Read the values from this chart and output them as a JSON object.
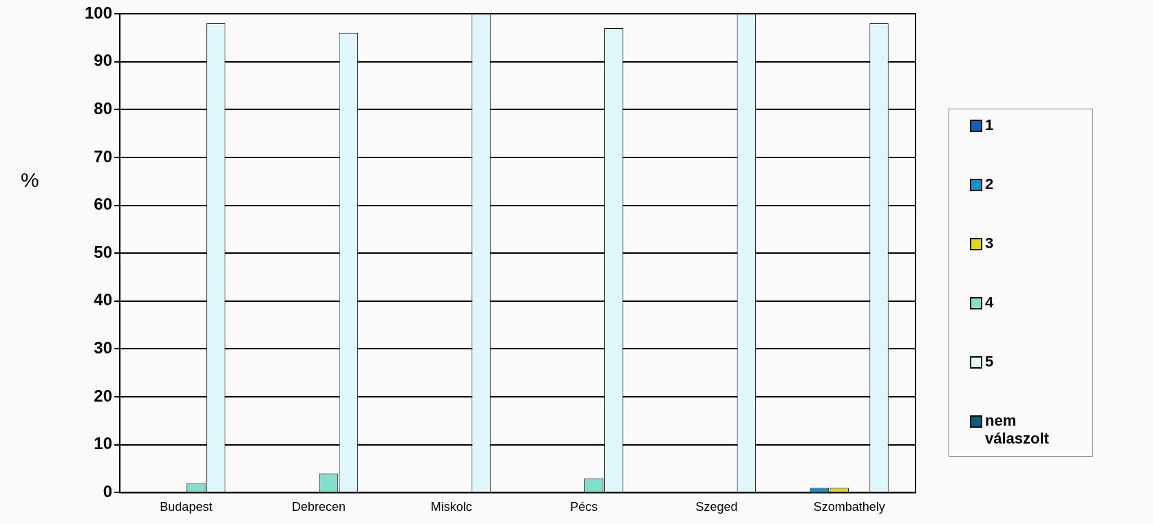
{
  "chart_data": {
    "type": "bar",
    "ylabel": "%",
    "categories": [
      "Budapest",
      "Debrecen",
      "Miskolc",
      "Pécs",
      "Szeged",
      "Szombathely"
    ],
    "series": [
      {
        "name": "1",
        "color": "#0b63c4",
        "values": [
          0,
          0,
          0,
          0,
          0,
          0
        ]
      },
      {
        "name": "2",
        "color": "#0099d6",
        "values": [
          0,
          0,
          0,
          0,
          0,
          1
        ]
      },
      {
        "name": "3",
        "color": "#e0d800",
        "values": [
          0,
          0,
          0,
          0,
          0,
          1
        ]
      },
      {
        "name": "4",
        "color": "#80e0d0",
        "values": [
          2,
          4,
          0,
          3,
          0,
          0
        ]
      },
      {
        "name": "5",
        "color": "#dff6fb",
        "values": [
          98,
          96,
          100,
          97,
          100,
          98
        ]
      },
      {
        "name": "nem válaszolt",
        "color": "#00617a",
        "values": [
          0,
          0,
          0,
          0,
          0,
          0
        ]
      }
    ],
    "ylim": [
      0,
      100
    ],
    "yticks": [
      0,
      10,
      20,
      30,
      40,
      50,
      60,
      70,
      80,
      90,
      100
    ],
    "grid": "y",
    "legend": "right"
  }
}
